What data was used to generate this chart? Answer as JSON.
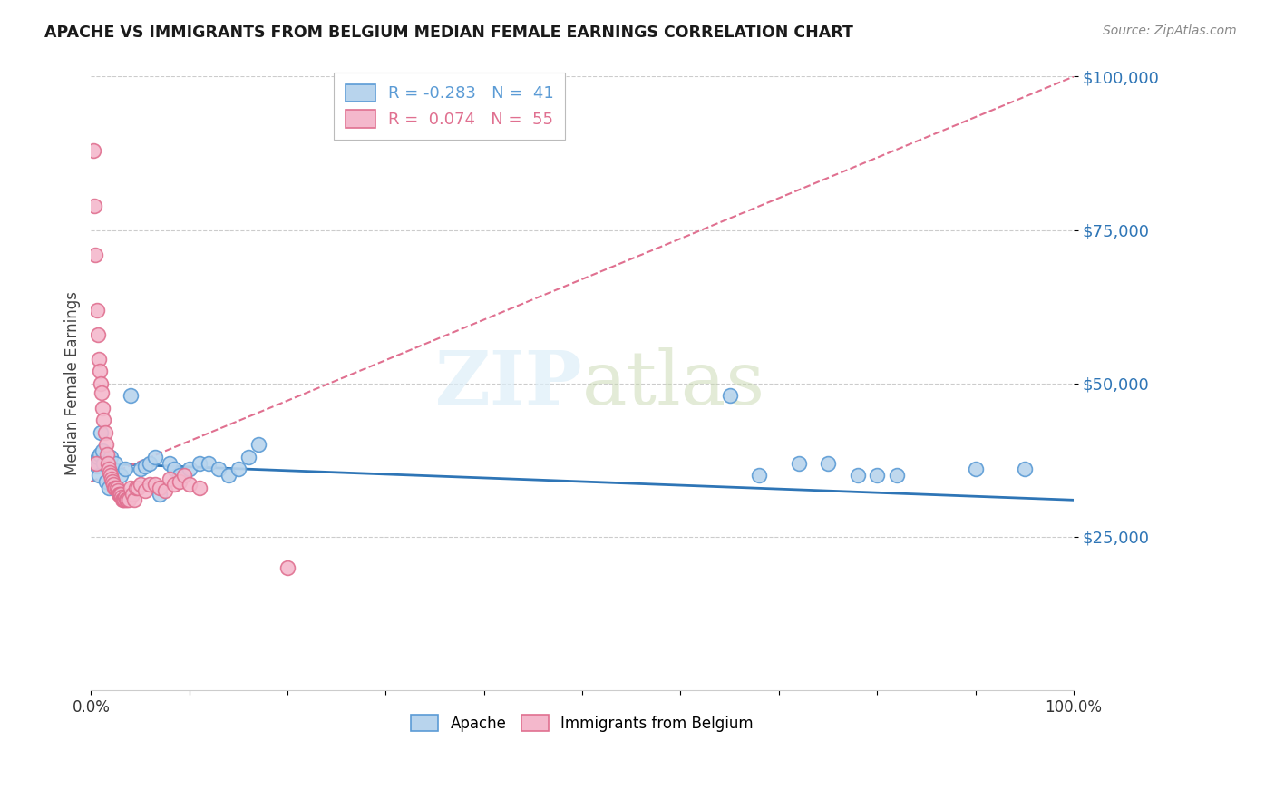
{
  "title": "APACHE VS IMMIGRANTS FROM BELGIUM MEDIAN FEMALE EARNINGS CORRELATION CHART",
  "source": "Source: ZipAtlas.com",
  "ylabel": "Median Female Earnings",
  "xlim": [
    0,
    1.0
  ],
  "ylim": [
    0,
    100000
  ],
  "yticks": [
    25000,
    50000,
    75000,
    100000
  ],
  "ytick_labels": [
    "$25,000",
    "$50,000",
    "$75,000",
    "$100,000"
  ],
  "xtick_positions": [
    0.0,
    0.1,
    0.2,
    0.3,
    0.4,
    0.5,
    0.6,
    0.7,
    0.8,
    0.9,
    1.0
  ],
  "xtick_labels": [
    "0.0%",
    "",
    "",
    "",
    "",
    "",
    "",
    "",
    "",
    "",
    "100.0%"
  ],
  "background_color": "#ffffff",
  "apache_color": "#b8d4ed",
  "apache_edge_color": "#5b9bd5",
  "belgium_color": "#f4b8cc",
  "belgium_edge_color": "#e07090",
  "trend_apache_color": "#2e75b6",
  "trend_belgium_color": "#e07090",
  "trend_apache_y0": 37000,
  "trend_apache_y1": 31000,
  "trend_belgium_y0": 34000,
  "trend_belgium_y1": 100000,
  "legend_R_apache": "-0.283",
  "legend_N_apache": "41",
  "legend_R_belgium": "0.074",
  "legend_N_belgium": "55",
  "apache_x": [
    0.005,
    0.006,
    0.007,
    0.008,
    0.009,
    0.01,
    0.012,
    0.013,
    0.015,
    0.018,
    0.02,
    0.022,
    0.025,
    0.03,
    0.035,
    0.04,
    0.05,
    0.055,
    0.06,
    0.065,
    0.07,
    0.08,
    0.085,
    0.09,
    0.1,
    0.11,
    0.12,
    0.13,
    0.14,
    0.15,
    0.16,
    0.17,
    0.65,
    0.68,
    0.72,
    0.75,
    0.78,
    0.8,
    0.82,
    0.9,
    0.95
  ],
  "apache_y": [
    37000,
    36500,
    38000,
    35000,
    38500,
    42000,
    39000,
    37000,
    34000,
    33000,
    38000,
    36000,
    37000,
    35000,
    36000,
    48000,
    36000,
    36500,
    37000,
    38000,
    32000,
    37000,
    36000,
    35000,
    36000,
    37000,
    37000,
    36000,
    35000,
    36000,
    38000,
    40000,
    48000,
    35000,
    37000,
    37000,
    35000,
    35000,
    35000,
    36000,
    36000
  ],
  "belgium_x": [
    0.002,
    0.003,
    0.004,
    0.005,
    0.006,
    0.007,
    0.008,
    0.009,
    0.01,
    0.011,
    0.012,
    0.013,
    0.014,
    0.015,
    0.016,
    0.017,
    0.018,
    0.019,
    0.02,
    0.021,
    0.022,
    0.023,
    0.024,
    0.025,
    0.026,
    0.027,
    0.028,
    0.029,
    0.03,
    0.031,
    0.032,
    0.033,
    0.034,
    0.035,
    0.036,
    0.037,
    0.038,
    0.04,
    0.042,
    0.044,
    0.046,
    0.048,
    0.05,
    0.055,
    0.06,
    0.065,
    0.07,
    0.075,
    0.08,
    0.085,
    0.09,
    0.095,
    0.1,
    0.11,
    0.2
  ],
  "belgium_y": [
    88000,
    79000,
    71000,
    37000,
    62000,
    58000,
    54000,
    52000,
    50000,
    48500,
    46000,
    44000,
    42000,
    40000,
    38500,
    37000,
    36000,
    35500,
    35000,
    34500,
    34000,
    33500,
    33000,
    33000,
    33000,
    32500,
    32000,
    32000,
    32000,
    31500,
    31000,
    31000,
    31000,
    31500,
    31000,
    31000,
    31000,
    33000,
    32000,
    31000,
    33000,
    33000,
    33500,
    32500,
    33500,
    33500,
    33000,
    32500,
    34500,
    33500,
    34000,
    35000,
    33500,
    33000,
    20000
  ]
}
